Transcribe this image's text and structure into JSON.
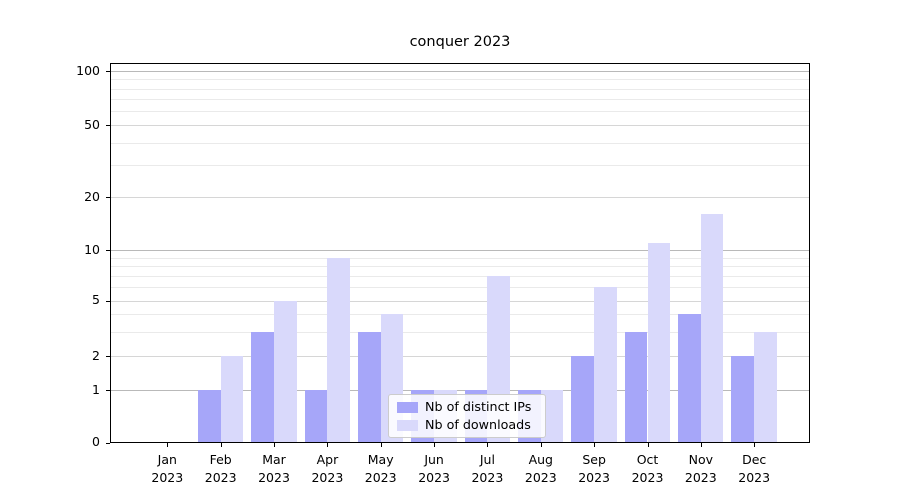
{
  "chart_data": {
    "type": "bar",
    "title": "conquer 2023",
    "categories": [
      "Jan 2023",
      "Feb 2023",
      "Mar 2023",
      "Apr 2023",
      "May 2023",
      "Jun 2023",
      "Jul 2023",
      "Aug 2023",
      "Sep 2023",
      "Oct 2023",
      "Nov 2023",
      "Dec 2023"
    ],
    "series": [
      {
        "name": "Nb of distinct IPs",
        "color": "#a6a6f9",
        "values": [
          0,
          1,
          3,
          1,
          3,
          1,
          1,
          1,
          2,
          3,
          4,
          2
        ]
      },
      {
        "name": "Nb of downloads",
        "color": "#d9d9fb",
        "values": [
          0,
          2,
          5,
          9,
          4,
          1,
          7,
          1,
          6,
          11,
          16,
          3
        ]
      }
    ],
    "yscale": "quasi-log (symlog-like, linear below 1)",
    "yticks": [
      0,
      1,
      2,
      5,
      10,
      20,
      50,
      100
    ],
    "ytick_labels": [
      "0",
      "1",
      "2",
      "5",
      "10",
      "20",
      "50",
      "100"
    ],
    "ylim": [
      0,
      110
    ],
    "xlabel": "",
    "ylabel": "",
    "grid": "horizontal major + minor",
    "legend_position": "lower center"
  },
  "colors": {
    "background": "#ffffff",
    "axes": "#000000",
    "grid_decade": "#b9b9b9",
    "grid_major": "#d6d6d6",
    "grid_minor": "#eaeaea",
    "legend_border": "#cccccc"
  }
}
